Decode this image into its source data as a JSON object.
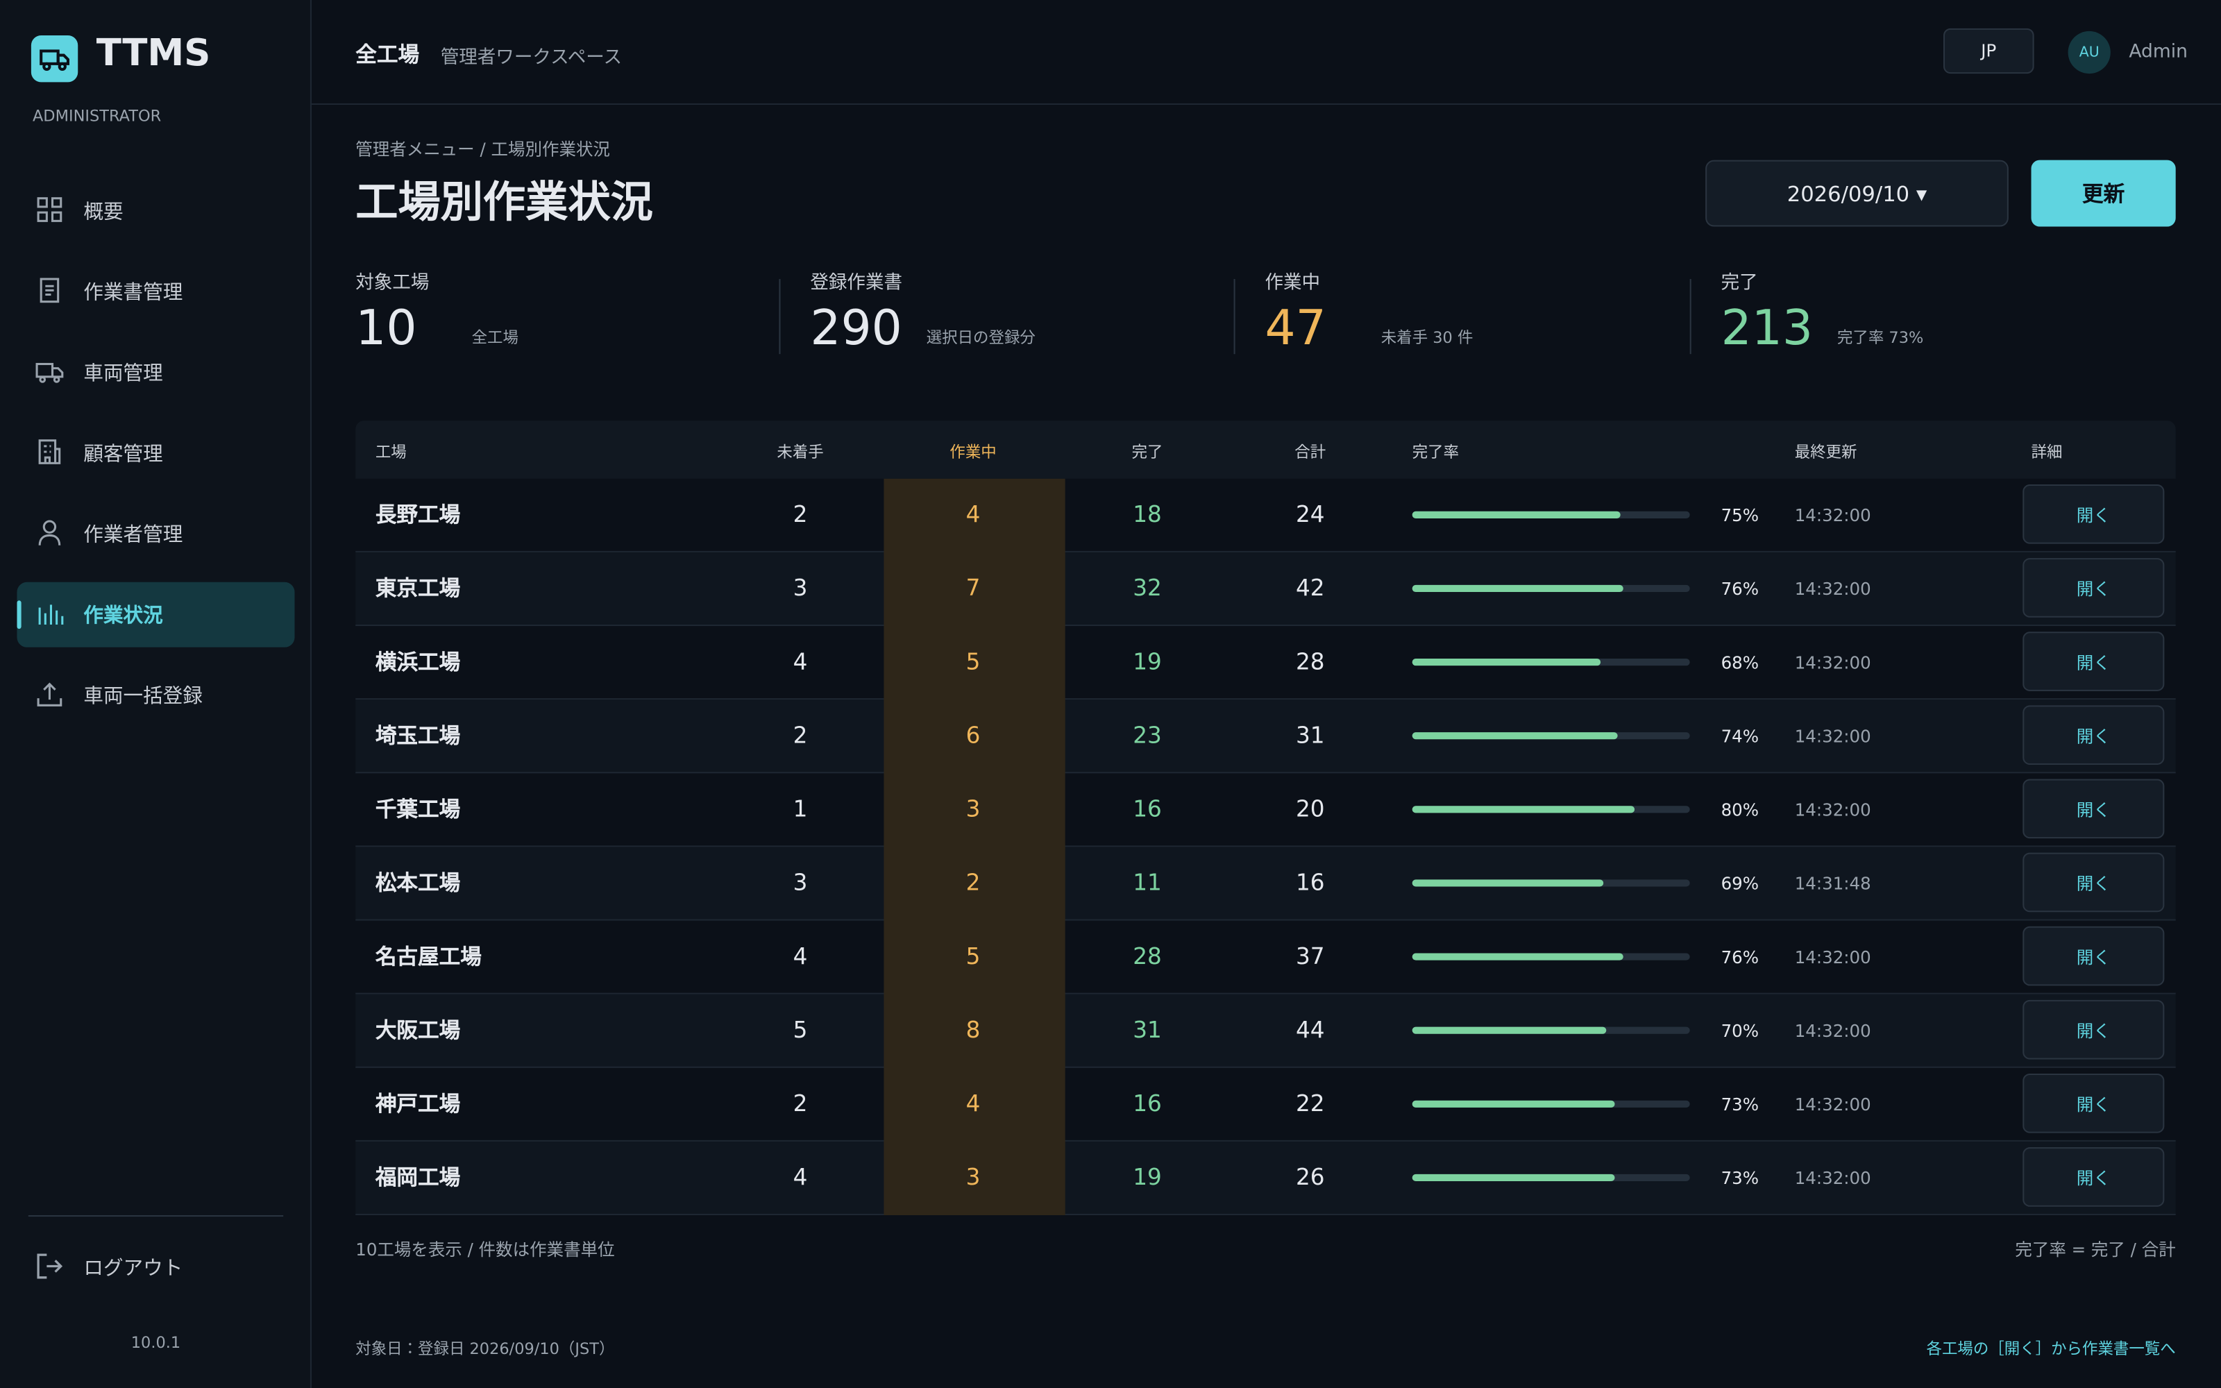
{
  "header": {
    "title": "全工場",
    "subtitle": "管理者ワークスペース",
    "lang": "JP",
    "avatar": "AU",
    "user": "Admin"
  },
  "sidebar": {
    "brand": "TTMS",
    "role": "ADMINISTRATOR",
    "nav": [
      "概要",
      "作業書管理",
      "車両管理",
      "顧客管理",
      "作業者管理",
      "作業状況",
      "車両一括登録"
    ],
    "active": 5,
    "logout": "ログアウト",
    "version": "10.0.1"
  },
  "page": {
    "breadcrumb": "管理者メニュー / 工場別作業状況",
    "title": "工場別作業状況",
    "date": "2026/09/10 ▾",
    "refresh": "更新"
  },
  "kpis": [
    {
      "label": "対象工場",
      "value": 10,
      "note": "全工場",
      "color": "#e6e9ee"
    },
    {
      "label": "登録作業書",
      "value": 290,
      "note": "選択日の登録分",
      "color": "#e6e9ee"
    },
    {
      "label": "作業中",
      "value": 47,
      "note": "未着手 30 件",
      "color": "#f0b65a"
    },
    {
      "label": "完了",
      "value": 213,
      "note": "完了率 73%",
      "color": "#7dd3a0"
    }
  ],
  "table": {
    "columns": [
      "工場",
      "未着手",
      "作業中",
      "完了",
      "合計",
      "完了率",
      "最終更新",
      "詳細"
    ],
    "rows": [
      [
        "長野工場",
        2,
        4,
        18,
        24,
        {
          "value": 75,
          "label": "75%"
        },
        "14:32:00",
        "開く"
      ],
      [
        "東京工場",
        3,
        7,
        32,
        42,
        {
          "value": 76,
          "label": "76%"
        },
        "14:32:00",
        "開く"
      ],
      [
        "横浜工場",
        4,
        5,
        19,
        28,
        {
          "value": 68,
          "label": "68%"
        },
        "14:32:00",
        "開く"
      ],
      [
        "埼玉工場",
        2,
        6,
        23,
        31,
        {
          "value": 74,
          "label": "74%"
        },
        "14:32:00",
        "開く"
      ],
      [
        "千葉工場",
        1,
        3,
        16,
        20,
        {
          "value": 80,
          "label": "80%"
        },
        "14:32:00",
        "開く"
      ],
      [
        "松本工場",
        3,
        2,
        11,
        16,
        {
          "value": 69,
          "label": "69%"
        },
        "14:31:48",
        "開く"
      ],
      [
        "名古屋工場",
        4,
        5,
        28,
        37,
        {
          "value": 76,
          "label": "76%"
        },
        "14:32:00",
        "開く"
      ],
      [
        "大阪工場",
        5,
        8,
        31,
        44,
        {
          "value": 70,
          "label": "70%"
        },
        "14:32:00",
        "開く"
      ],
      [
        "神戸工場",
        2,
        4,
        16,
        22,
        {
          "value": 73,
          "label": "73%"
        },
        "14:32:00",
        "開く"
      ],
      [
        "福岡工場",
        4,
        3,
        19,
        26,
        {
          "value": 73,
          "label": "73%"
        },
        "14:32:00",
        "開く"
      ]
    ]
  },
  "footer": {
    "note_left": "10工場を表示 / 件数は作業書単位",
    "note_right": "完了率 = 完了 / 合計",
    "target": "対象日：登録日 2026/09/10（JST）",
    "hint": "各工場の［開く］から作業書一覧へ"
  }
}
